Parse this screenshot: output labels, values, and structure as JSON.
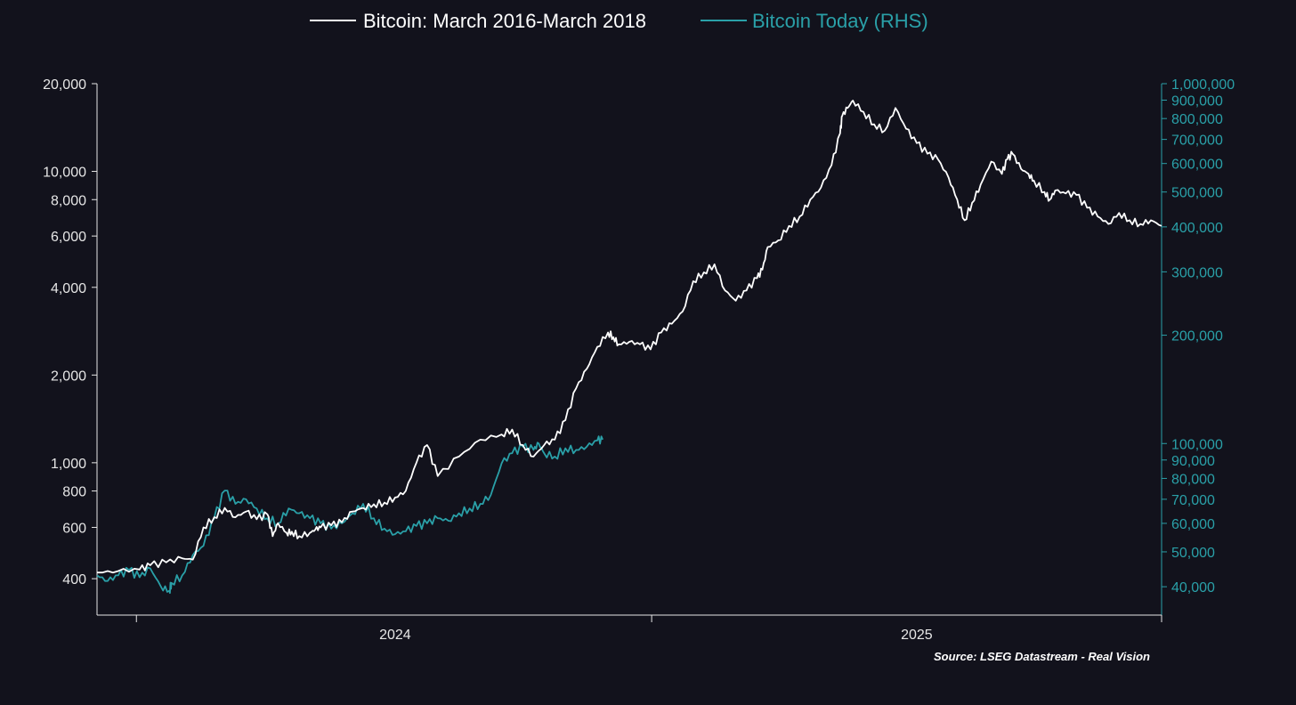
{
  "chart_data": {
    "type": "line",
    "title": "",
    "source_note": "Source: LSEG Datastream - Real Vision",
    "colors": {
      "background": "#12121c",
      "series_1": "#ffffff",
      "series_2": "#2aa0a8",
      "axis": "#e6e6e6"
    },
    "left_axis": {
      "scale": "log",
      "range": [
        300,
        20000
      ],
      "ticks": [
        400,
        600,
        800,
        1000,
        2000,
        4000,
        6000,
        8000,
        10000,
        20000
      ],
      "tick_labels": [
        "400",
        "600",
        "800",
        "1,000",
        "2,000",
        "4,000",
        "6,000",
        "8,000",
        "10,000",
        "20,000"
      ]
    },
    "right_axis": {
      "scale": "log",
      "range": [
        33360,
        1000000
      ],
      "ticks": [
        40000,
        50000,
        60000,
        70000,
        80000,
        90000,
        100000,
        200000,
        300000,
        400000,
        500000,
        600000,
        700000,
        800000,
        900000,
        1000000
      ],
      "tick_labels": [
        "40,000",
        "50,000",
        "60,000",
        "70,000",
        "80,000",
        "90,000",
        "100,000",
        "200,000",
        "300,000",
        "400,000",
        "500,000",
        "600,000",
        "700,000",
        "800,000",
        "900,000",
        "1,000,000"
      ]
    },
    "x_axis": {
      "range": [
        0,
        100
      ],
      "ticks": [
        3.7,
        52.1
      ],
      "tick_labels": [
        "2024",
        "2025"
      ],
      "label_positions": [
        28.0,
        77.0
      ]
    },
    "series": [
      {
        "name": "Bitcoin: March 2016-March 2018",
        "axis": "left",
        "x": [
          0,
          2,
          4,
          5,
          6.5,
          8,
          9,
          10,
          11,
          12,
          13,
          14,
          15,
          16,
          16.5,
          17,
          17.8,
          18.3,
          19,
          20,
          20.5,
          21,
          22,
          23,
          24,
          25,
          26,
          27,
          28,
          29,
          30,
          31,
          32,
          34,
          36,
          38,
          39,
          40,
          41,
          42,
          43,
          44,
          45,
          46,
          47,
          48,
          48.5,
          49,
          50,
          51,
          52,
          53,
          54,
          55,
          56,
          57,
          58,
          59,
          60,
          61,
          62,
          62.5,
          63,
          64,
          65,
          66,
          67,
          68,
          69,
          69.8,
          70,
          70.5,
          71,
          72,
          73,
          74,
          75,
          76,
          77,
          78,
          79,
          80,
          80.8,
          81.5,
          82.2,
          83,
          84,
          85,
          85.5,
          86,
          86.8,
          87.5,
          88,
          89,
          89.5,
          90,
          91,
          92,
          93,
          94,
          95,
          96,
          97,
          98,
          99,
          100
        ],
        "values": [
          420,
          425,
          430,
          445,
          455,
          470,
          465,
          600,
          650,
          700,
          650,
          680,
          640,
          665,
          560,
          620,
          575,
          580,
          560,
          575,
          590,
          600,
          610,
          625,
          680,
          700,
          720,
          730,
          760,
          800,
          1000,
          1150,
          900,
          1050,
          1200,
          1250,
          1300,
          1150,
          1050,
          1150,
          1200,
          1400,
          1800,
          2100,
          2500,
          2800,
          2700,
          2550,
          2600,
          2550,
          2450,
          2800,
          3000,
          3300,
          4200,
          4500,
          4800,
          3900,
          3600,
          3900,
          4300,
          4600,
          5500,
          5800,
          6500,
          7000,
          8000,
          8800,
          10500,
          13500,
          15500,
          16500,
          17500,
          16000,
          14500,
          13800,
          16500,
          14000,
          12500,
          11500,
          11000,
          9500,
          8000,
          6800,
          7800,
          9000,
          10800,
          9800,
          11000,
          11500,
          10200,
          9800,
          9300,
          8500,
          8000,
          8600,
          8400,
          8300,
          7500,
          7000,
          6600,
          7200,
          6800,
          6600,
          6800,
          6500
        ]
      },
      {
        "name": "Bitcoin Today (RHS)",
        "axis": "right",
        "x": [
          0,
          1,
          2,
          3,
          4,
          5,
          6,
          6.8,
          7,
          8,
          9,
          10,
          11,
          12,
          13,
          14,
          15,
          16,
          17,
          18,
          19,
          20,
          21,
          22,
          23,
          24,
          25,
          26,
          27,
          28,
          29,
          30,
          31,
          32,
          33,
          34,
          35,
          36,
          37,
          38,
          39,
          40,
          41,
          41.5,
          42,
          43,
          44,
          45,
          46,
          47,
          47.5
        ],
        "values": [
          43000,
          41500,
          43000,
          44500,
          42500,
          45000,
          40000,
          39000,
          41000,
          43000,
          49000,
          52000,
          62000,
          74000,
          68000,
          70000,
          66000,
          62000,
          60000,
          66000,
          64000,
          62000,
          60000,
          58000,
          60000,
          64000,
          68000,
          62000,
          58000,
          56000,
          57000,
          59000,
          60000,
          62000,
          61000,
          64000,
          66000,
          68000,
          72000,
          88000,
          94000,
          98000,
          96000,
          100000,
          94000,
          92000,
          97000,
          96000,
          98000,
          102000,
          102500
        ]
      }
    ]
  }
}
